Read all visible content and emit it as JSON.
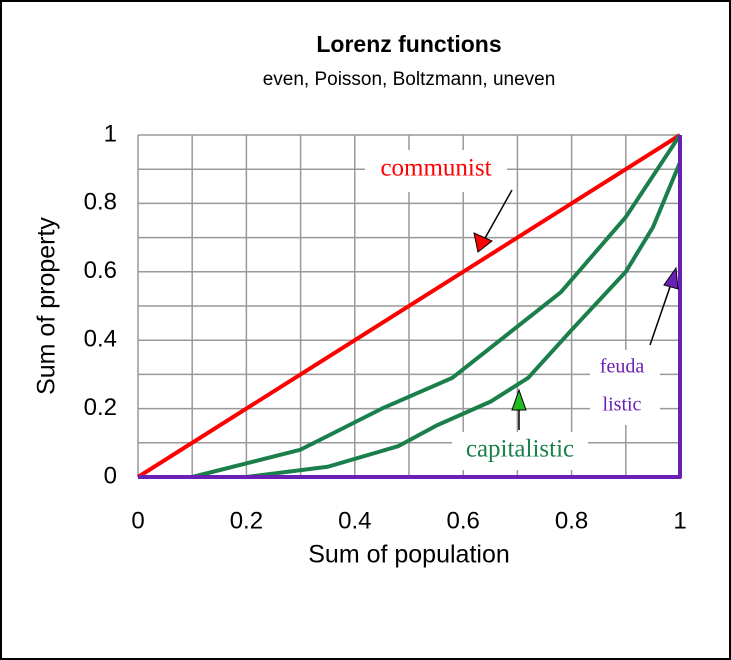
{
  "chart_data": {
    "type": "line",
    "title": "Lorenz functions",
    "subtitle": "even, Poisson, Boltzmann, uneven",
    "xlabel": "Sum of population",
    "ylabel": "Sum of property",
    "xlim": [
      0,
      1
    ],
    "ylim": [
      0,
      1
    ],
    "xticks": [
      0,
      0.2,
      0.4,
      0.6,
      0.8,
      1
    ],
    "yticks": [
      0,
      0.2,
      0.4,
      0.6,
      0.8,
      1
    ],
    "grid": true,
    "series": [
      {
        "color": "#ff0000",
        "x": [
          0,
          1
        ],
        "values": [
          0,
          1
        ]
      },
      {
        "color": "#1a7f4b",
        "x": [
          0.1,
          0.3,
          0.45,
          0.58,
          0.78,
          0.9,
          1
        ],
        "values": [
          0,
          0.08,
          0.2,
          0.29,
          0.54,
          0.76,
          1
        ]
      },
      {
        "color": "#1a7f4b",
        "x": [
          0.2,
          0.35,
          0.48,
          0.55,
          0.65,
          0.72,
          0.8,
          0.9,
          0.95,
          1
        ],
        "values": [
          0,
          0.03,
          0.09,
          0.15,
          0.22,
          0.29,
          0.43,
          0.6,
          0.73,
          0.92
        ]
      },
      {
        "color": "#6a1fb5",
        "x": [
          0,
          1,
          1
        ],
        "values": [
          0,
          0,
          1
        ]
      }
    ],
    "annotations": [
      {
        "text": "communist",
        "color": "#ff0000"
      },
      {
        "text": "capitalistic",
        "color": "#1a7f4b"
      },
      {
        "text": "feuda",
        "color": "#6a1fb5"
      },
      {
        "text": "listic",
        "color": "#6a1fb5"
      }
    ]
  }
}
